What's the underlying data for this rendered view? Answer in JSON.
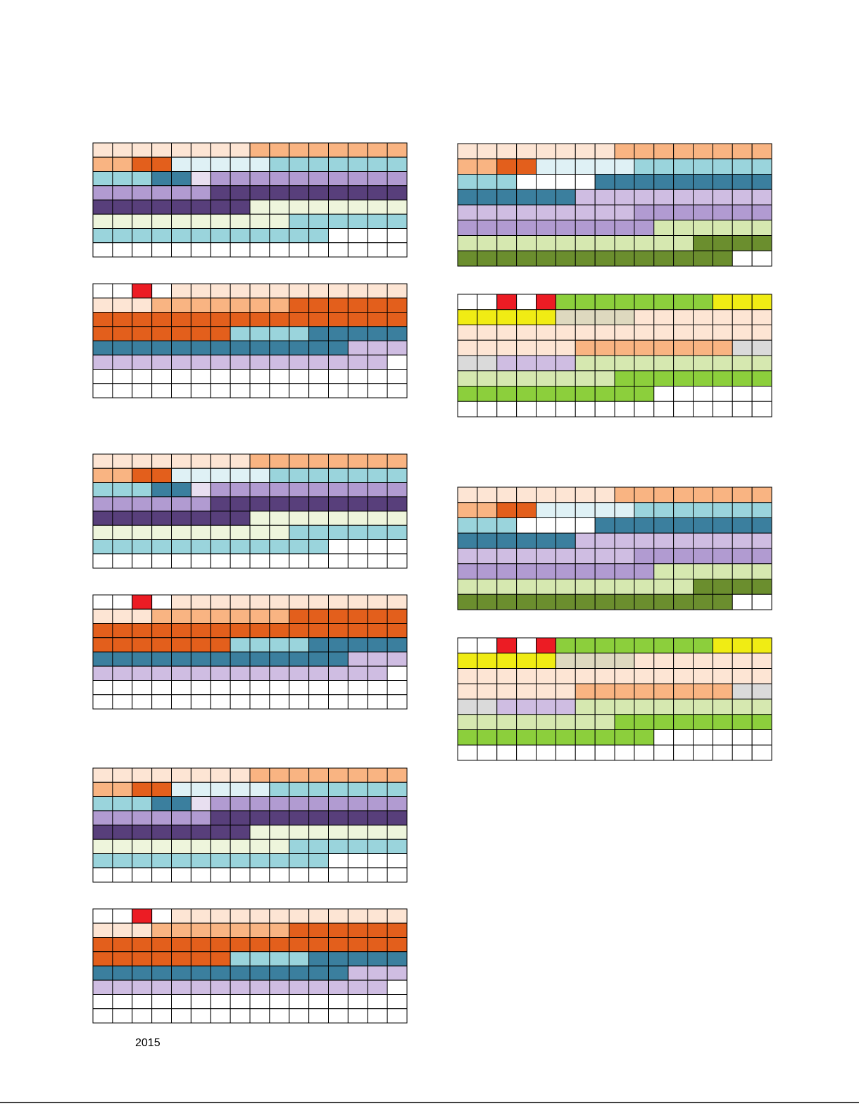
{
  "footer": {
    "year": "2015"
  }
}
